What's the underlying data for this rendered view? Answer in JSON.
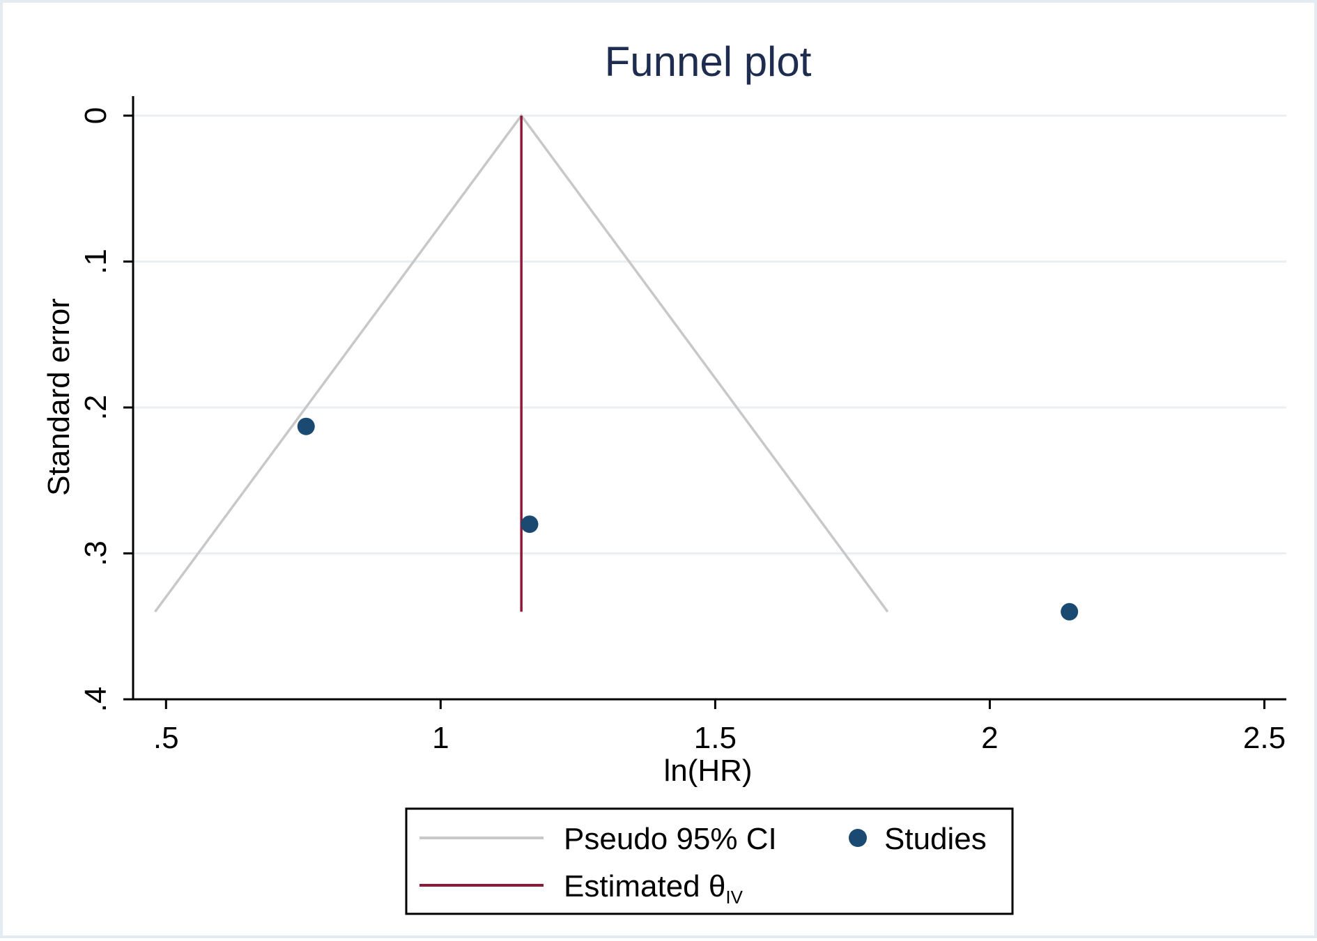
{
  "chart_data": {
    "type": "scatter",
    "title": "Funnel plot",
    "xlabel": "ln(HR)",
    "ylabel": "Standard error",
    "xlim": [
      0.44,
      2.54
    ],
    "ylim": [
      0.4,
      0.0
    ],
    "y_reversed": true,
    "grid": true,
    "xticks": [
      0.5,
      1,
      1.5,
      2,
      2.5
    ],
    "xtick_labels": [
      ".5",
      "1",
      "1.5",
      "2",
      "2.5"
    ],
    "yticks": [
      0,
      0.1,
      0.2,
      0.3,
      0.4
    ],
    "ytick_labels": [
      "0",
      ".1",
      ".2",
      ".3",
      ".4"
    ],
    "legend_position": "bottom",
    "series": [
      {
        "name": "Pseudo 95% CI",
        "kind": "line",
        "color": "#c8c8c8",
        "lines": [
          [
            [
              0.48,
              0.34
            ],
            [
              1.147,
              0.0
            ],
            [
              1.814,
              0.34
            ]
          ]
        ]
      },
      {
        "name": "Estimated θIV",
        "kind": "line",
        "color": "#8c1a38",
        "lines": [
          [
            [
              1.147,
              0.0
            ],
            [
              1.147,
              0.34
            ]
          ]
        ]
      },
      {
        "name": "Studies",
        "kind": "scatter",
        "color": "#1a4a72",
        "x": [
          0.755,
          1.162,
          2.145
        ],
        "y": [
          0.213,
          0.28,
          0.34
        ]
      }
    ],
    "legend": [
      {
        "label": "Pseudo 95% CI",
        "symbol": "line",
        "color": "#c8c8c8"
      },
      {
        "label": "Studies",
        "symbol": "dot",
        "color": "#1a4a72"
      },
      {
        "label": "Estimated θ",
        "subscript": "IV",
        "symbol": "line",
        "color": "#8c1a38"
      }
    ],
    "colors": {
      "title": "#1e2d4f",
      "axis": "#000000",
      "grid": "#eaeff3",
      "text": "#000000"
    }
  }
}
